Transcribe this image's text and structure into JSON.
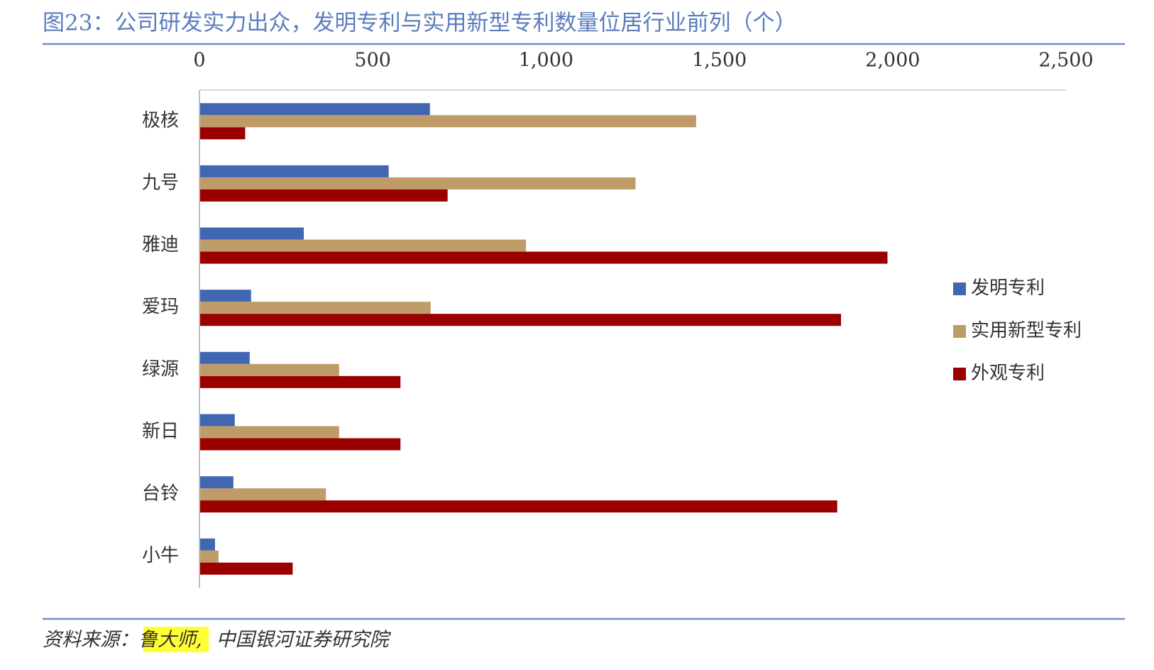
{
  "chart_data": {
    "type": "bar",
    "orientation": "horizontal",
    "title": "图23：公司研发实力出众，发明专利与实用新型专利数量位居行业前列（个）",
    "categories": [
      "极核",
      "九号",
      "雅迪",
      "爱玛",
      "绿源",
      "新日",
      "台铃",
      "小牛"
    ],
    "series": [
      {
        "name": "发明专利",
        "color": "#4267b2",
        "values": [
          665,
          546,
          301,
          149,
          145,
          102,
          98,
          45
        ]
      },
      {
        "name": "实用新型专利",
        "color": "#bf9b67",
        "values": [
          1433,
          1258,
          942,
          667,
          403,
          403,
          365,
          55
        ]
      },
      {
        "name": "外观专利",
        "color": "#9b0000",
        "values": [
          132,
          716,
          1985,
          1851,
          580,
          580,
          1840,
          269
        ]
      }
    ],
    "xlim": [
      0,
      2500
    ],
    "xticks": [
      0,
      500,
      {
        "value": 1000,
        "label": "1,000"
      },
      {
        "value": 1500,
        "label": "1,500"
      },
      {
        "value": 2000,
        "label": "2,000"
      },
      {
        "value": 2500,
        "label": "2,500"
      }
    ],
    "grid": false,
    "legend": "right"
  },
  "footer": {
    "prefix": "资料来源：",
    "highlight": "鲁大师,",
    "rest": "中国银河证券研究院"
  }
}
